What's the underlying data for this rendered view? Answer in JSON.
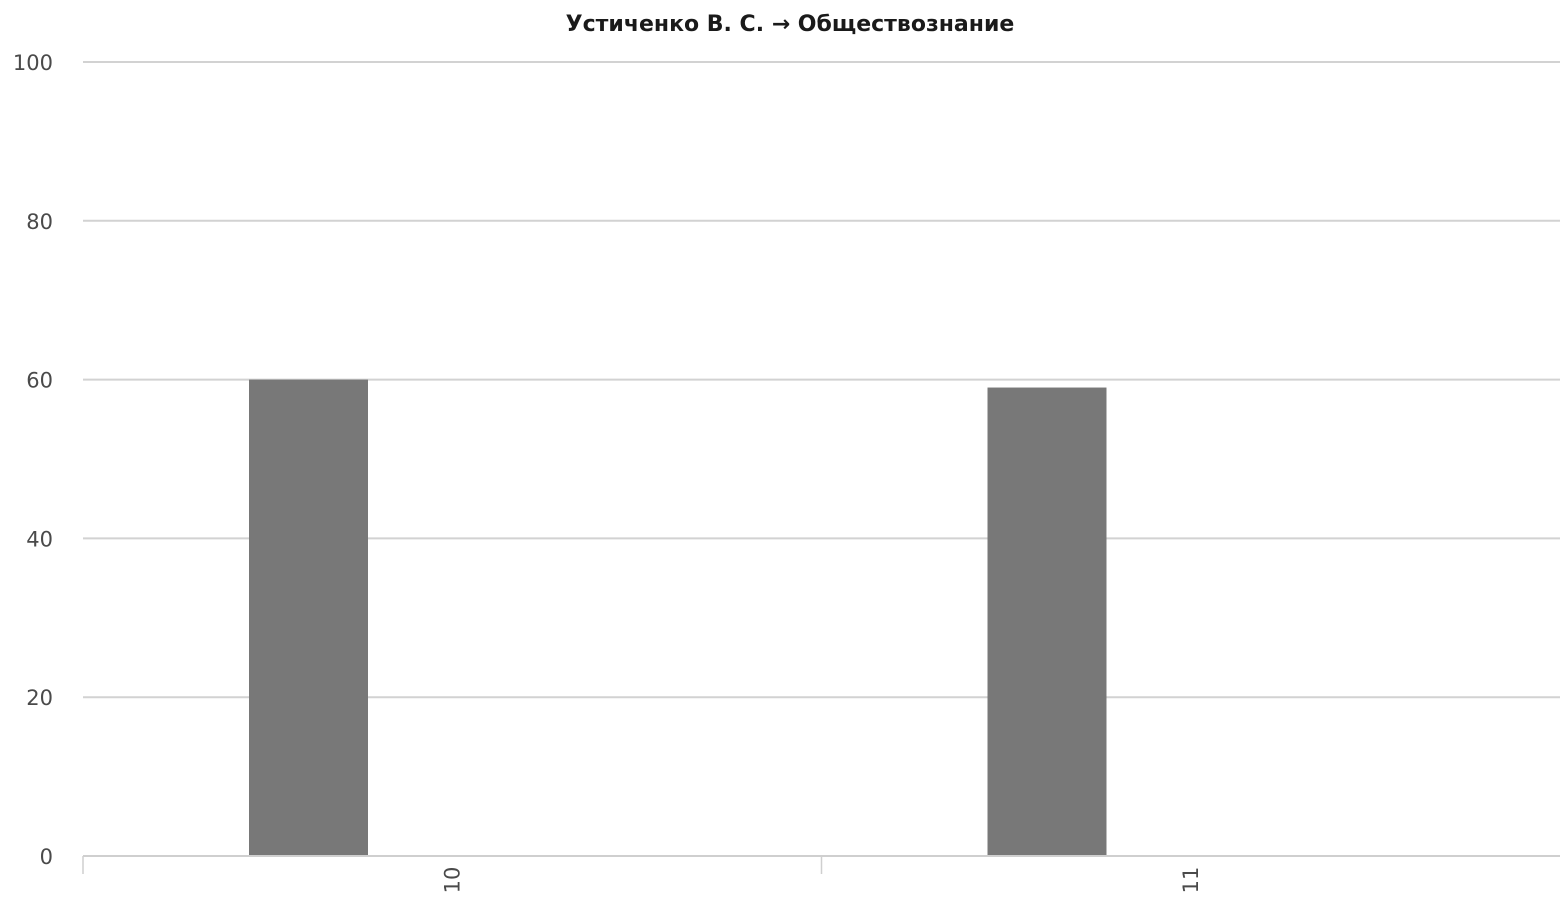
{
  "colors": {
    "bar": "#787878",
    "grid": "#d2d2d2",
    "axis": "#cfcfcf",
    "text": "#4a4a4a",
    "title": "#1a1a1a"
  },
  "chart_data": {
    "type": "bar",
    "title": "Устиченко В. С. → Обществознание",
    "xlabel": "",
    "ylabel": "",
    "categories": [
      "10",
      "11"
    ],
    "values": [
      60,
      59
    ],
    "ylim": [
      0,
      100
    ],
    "yticks": [
      0,
      20,
      40,
      60,
      80,
      100
    ],
    "x_tick_rotation": "vertical",
    "grid": true,
    "legend": "none"
  }
}
